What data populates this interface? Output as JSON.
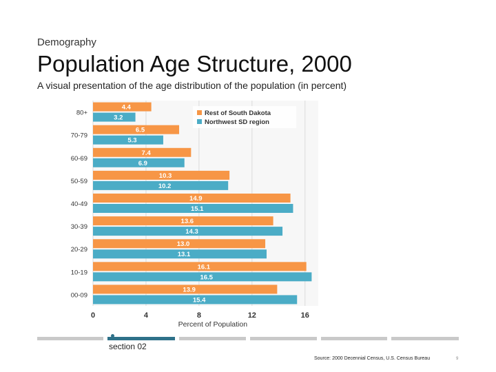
{
  "header": {
    "kicker": "Demography",
    "title": "Population Age Structure, 2000",
    "subtitle": "A visual presentation of the age distribution of the population (in percent)"
  },
  "footer": {
    "section_label": "section 02",
    "source": "Source: 2000 Decennial Census, U.S. Census Bureau",
    "page_number": "9"
  },
  "colors": {
    "accent": "#2e7189",
    "nav_inactive": "#c9c9c9"
  },
  "chart_data": {
    "type": "bar",
    "orientation": "horizontal",
    "categories": [
      "80+",
      "70-79",
      "60-69",
      "50-59",
      "40-49",
      "30-39",
      "20-29",
      "10-19",
      "00-09"
    ],
    "series": [
      {
        "name": "Rest of South Dakota",
        "color": "#f79646",
        "values": [
          4.4,
          6.5,
          7.4,
          10.3,
          14.9,
          13.6,
          13.0,
          16.1,
          13.9
        ]
      },
      {
        "name": "Northwest SD region",
        "color": "#4bacc6",
        "values": [
          3.2,
          5.3,
          6.9,
          10.2,
          15.1,
          14.3,
          13.1,
          16.5,
          15.4
        ]
      }
    ],
    "xlabel": "Percent of Population",
    "ylabel": "",
    "xlim": [
      0,
      17
    ],
    "xticks": [
      0,
      4,
      8,
      12,
      16
    ],
    "grid": true,
    "legend_position": "top-right",
    "data_labels": true
  }
}
